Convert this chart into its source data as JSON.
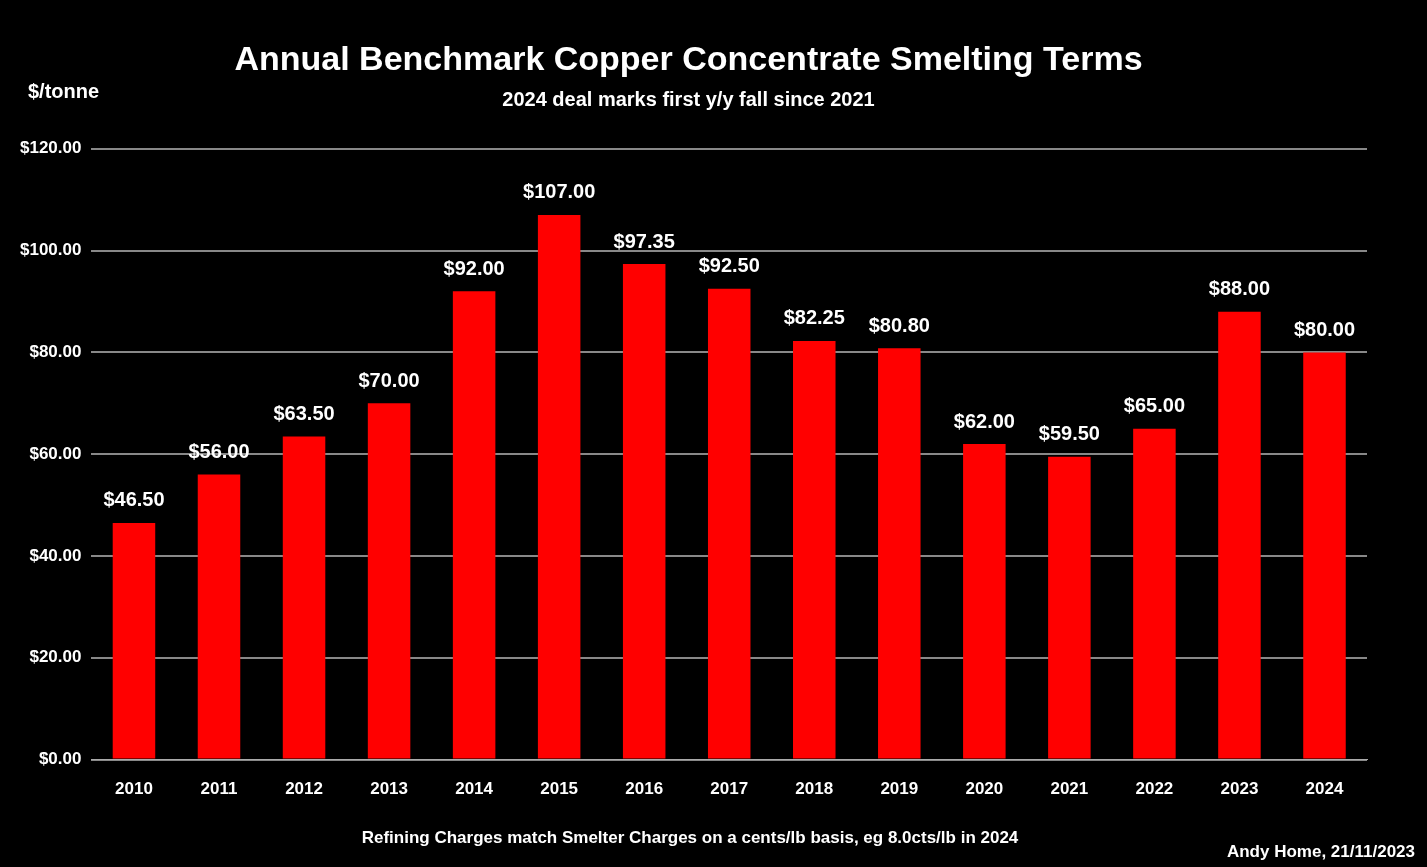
{
  "chart_data": {
    "type": "bar",
    "title": "Annual Benchmark Copper Concentrate Smelting Terms",
    "subtitle": "2024 deal marks first y/y fall since 2021",
    "ylabel": "$/tonne",
    "categories": [
      "2010",
      "2011",
      "2012",
      "2013",
      "2014",
      "2015",
      "2016",
      "2017",
      "2018",
      "2019",
      "2020",
      "2021",
      "2022",
      "2023",
      "2024"
    ],
    "values": [
      46.5,
      56,
      63.5,
      70,
      92,
      107,
      97.35,
      92.5,
      82.25,
      80.8,
      62,
      59.5,
      65,
      88,
      80
    ],
    "color": "#ff0000",
    "ylim": [
      0,
      120
    ],
    "yticks": [
      {
        "value": 0,
        "label": "$0.00"
      },
      {
        "value": 20,
        "label": "$20.00"
      },
      {
        "value": 40,
        "label": "$40.00"
      },
      {
        "value": 60,
        "label": "$60.00"
      },
      {
        "value": 80,
        "label": "$80.00"
      },
      {
        "value": 100,
        "label": "$100.00"
      },
      {
        "value": 120,
        "label": "$120.00"
      }
    ],
    "value_labels": [
      "$46.50",
      "$56.00",
      "$63.50",
      "$70.00",
      "$92.00",
      "$107.00",
      "$97.35",
      "$92.50",
      "$82.25",
      "$80.80",
      "$62.00",
      "$59.50",
      "$65.00",
      "$88.00",
      "$80.00"
    ],
    "grid": "y",
    "legend": false,
    "annotations": [
      "Refining Charges match Smelter Charges on a cents/lb basis, eg 8.0cts/lb in 2024",
      "Andy Home, 21/11/2023"
    ]
  }
}
